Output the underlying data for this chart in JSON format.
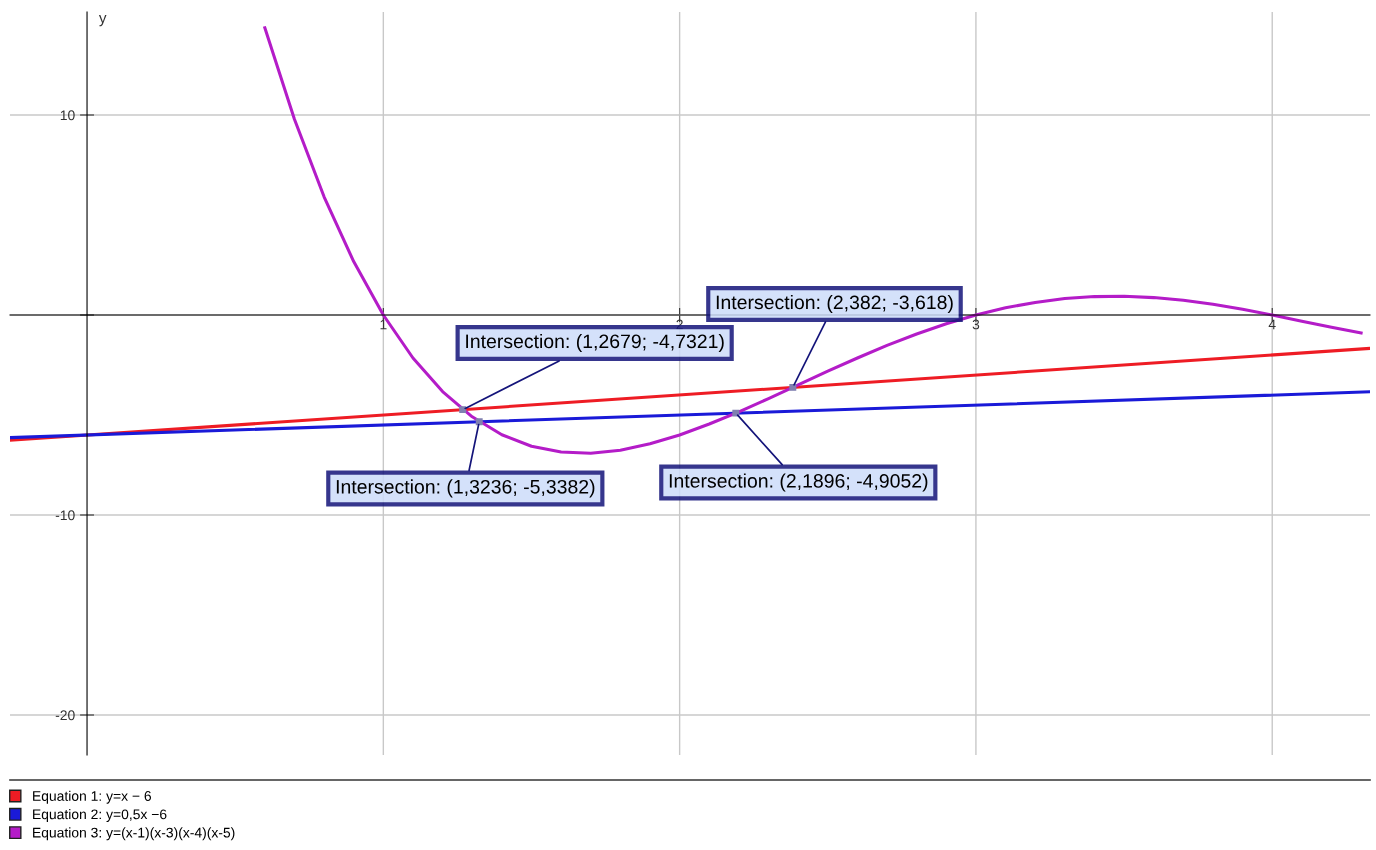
{
  "chart_data": {
    "type": "line",
    "ylabel": "y",
    "xlim": [
      -0.26,
      4.33
    ],
    "ylim": [
      -22,
      15.15
    ],
    "xticks": [
      1,
      2,
      3,
      4
    ],
    "yticks": [
      -20,
      -10,
      {
        "value": 0,
        "label": null
      },
      10
    ],
    "grid": true,
    "legend": "bottom",
    "marker": "none",
    "line_style": "solid",
    "series": [
      {
        "name": "Equation 1: y=x − 6",
        "color": "#ee1c24",
        "x": [
          -0.26,
          4.33
        ],
        "values": [
          -6.26,
          -1.67
        ]
      },
      {
        "name": "Equation 2: y=0,5x −6",
        "color": "#1a1ad8",
        "x": [
          -0.26,
          4.33
        ],
        "values": [
          -6.13,
          -3.84
        ]
      },
      {
        "name": "Equation 3: y=(x-1)(x-3)(x-4)(x-5)",
        "color": "#b41cc8",
        "x": [
          0.6,
          0.7,
          0.8,
          0.9,
          1.0,
          1.1,
          1.2,
          1.3,
          1.4,
          1.5,
          1.6,
          1.7,
          1.8,
          1.9,
          2.0,
          2.1,
          2.2,
          2.3,
          2.4,
          2.5,
          2.6,
          2.7,
          2.8,
          2.9,
          3.0,
          3.1,
          3.2,
          3.3,
          3.4,
          3.5,
          3.6,
          3.7,
          3.8,
          3.9,
          4.0,
          4.1,
          4.2,
          4.3
        ],
        "values": [
          14.36,
          9.79,
          5.91,
          2.67,
          0,
          -2.15,
          -3.83,
          -5.09,
          -5.99,
          -6.56,
          -6.85,
          -6.91,
          -6.76,
          -6.44,
          -6,
          -5.45,
          -4.84,
          -4.18,
          -3.49,
          -2.81,
          -2.15,
          -1.52,
          -0.95,
          -0.44,
          0,
          0.36,
          0.63,
          0.82,
          0.92,
          0.94,
          0.87,
          0.74,
          0.54,
          0.29,
          0,
          -0.31,
          -0.61,
          -0.9
        ]
      }
    ],
    "annotations": [
      {
        "text": "Intersection: (1,2679; -4,7321)",
        "x": 1.2679,
        "y": -4.7321
      },
      {
        "text": "Intersection: (1,3236; -5,3382)",
        "x": 1.3236,
        "y": -5.3382
      },
      {
        "text": "Intersection: (2,382; -3,618)",
        "x": 2.382,
        "y": -3.618
      },
      {
        "text": "Intersection: (2,1896; -4,9052)",
        "x": 2.1896,
        "y": -4.9052
      }
    ]
  }
}
